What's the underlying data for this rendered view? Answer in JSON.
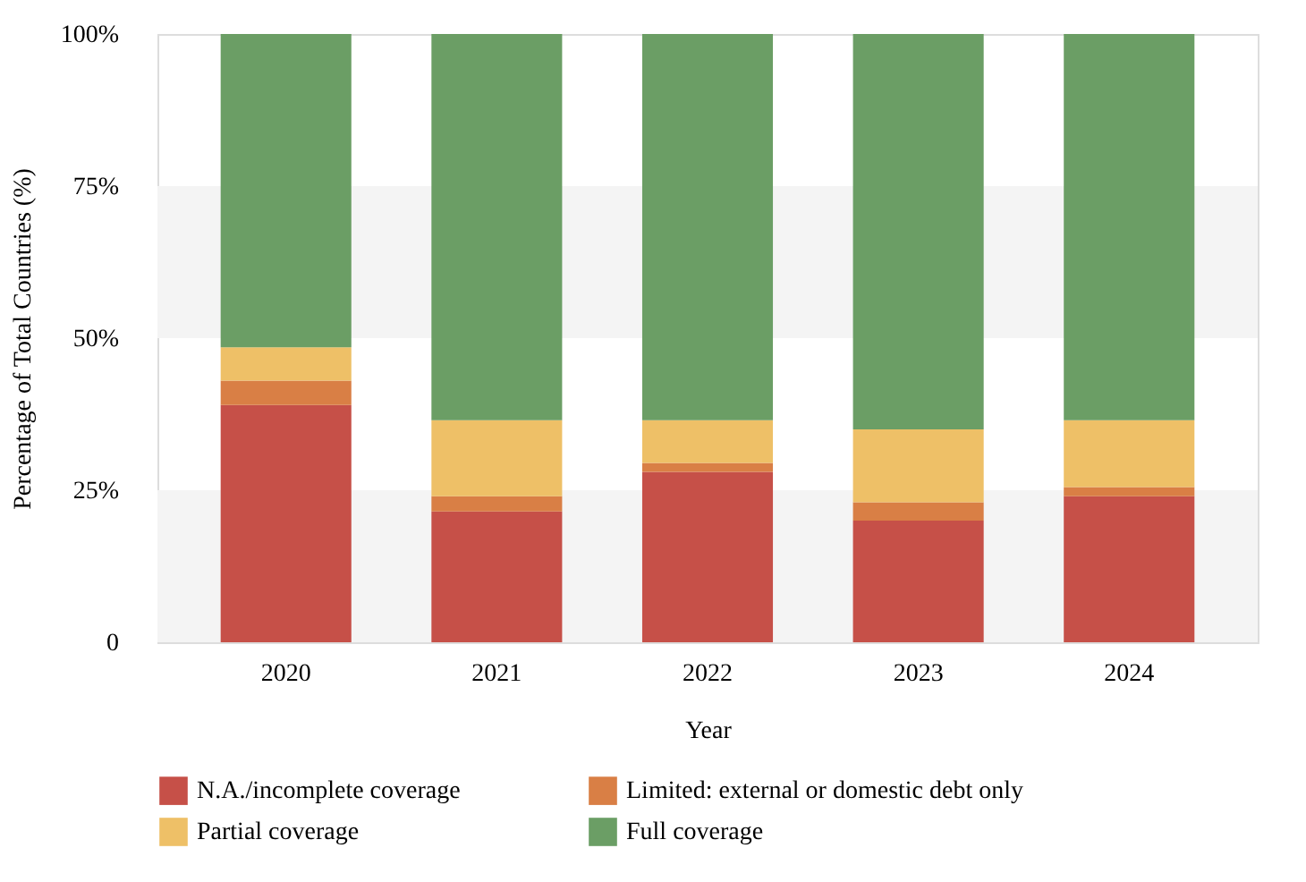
{
  "chart_data": {
    "type": "bar",
    "stacked": true,
    "xlabel": "Year",
    "ylabel": "Percentage of Total Countries (%)",
    "categories": [
      "2020",
      "2021",
      "2022",
      "2023",
      "2024"
    ],
    "series": [
      {
        "name": "N.A./incomplete coverage",
        "color": "#c65048",
        "values": [
          39,
          21.5,
          28,
          20,
          24
        ]
      },
      {
        "name": "Limited: external or domestic debt only",
        "color": "#d97f45",
        "values": [
          4,
          2.5,
          1.5,
          3,
          1.5
        ]
      },
      {
        "name": "Partial coverage",
        "color": "#eec067",
        "values": [
          5.5,
          12.5,
          7,
          12,
          11
        ]
      },
      {
        "name": "Full coverage",
        "color": "#6b9e65",
        "values": [
          51.5,
          63.5,
          63.5,
          65,
          63.5
        ]
      }
    ],
    "ylim": [
      0,
      100
    ],
    "yticks": [
      {
        "value": 0,
        "label": "0"
      },
      {
        "value": 25,
        "label": "25%"
      },
      {
        "value": 50,
        "label": "50%"
      },
      {
        "value": 75,
        "label": "75%"
      },
      {
        "value": 100,
        "label": "100%"
      }
    ],
    "bands": [
      {
        "axis": "y",
        "from": 0,
        "to": 25,
        "color": "#f4f4f4"
      },
      {
        "axis": "y",
        "from": 50,
        "to": 75,
        "color": "#f4f4f4"
      }
    ],
    "grid": false,
    "legend": "bottom"
  }
}
